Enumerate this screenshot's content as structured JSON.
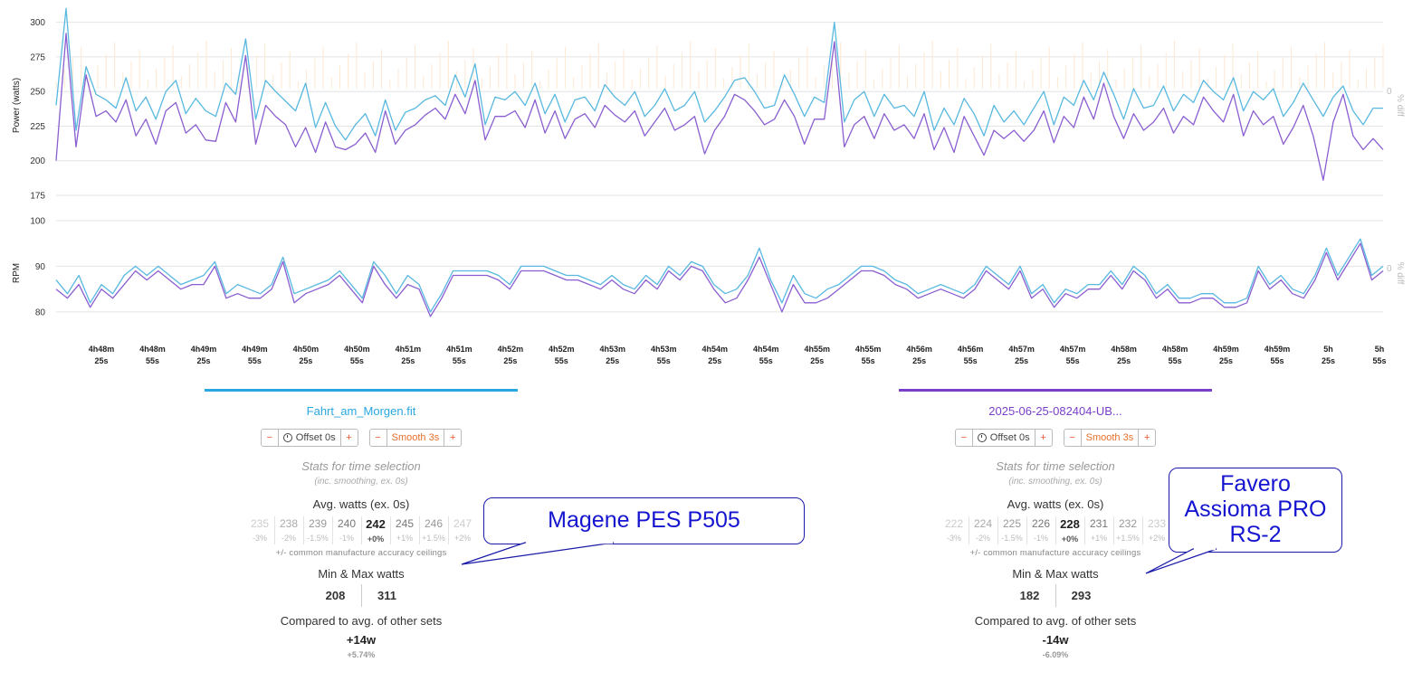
{
  "chart_data": [
    {
      "type": "line",
      "ylabel": "Power (watts)",
      "y2label": "% diff",
      "y2_tick": "0",
      "ylim": [
        175,
        305
      ],
      "yticks": [
        175,
        200,
        225,
        250,
        275,
        300
      ],
      "grid": true,
      "series": [
        {
          "file": "Fahrt_am_Morgen.fit",
          "color": "#58b8e0",
          "values": [
            240,
            310,
            222,
            268,
            248,
            244,
            238,
            260,
            236,
            246,
            230,
            250,
            258,
            234,
            245,
            236,
            232,
            256,
            248,
            288,
            230,
            258,
            250,
            243,
            236,
            256,
            224,
            242,
            225,
            215,
            226,
            234,
            218,
            244,
            222,
            235,
            238,
            244,
            247,
            240,
            262,
            246,
            270,
            226,
            246,
            244,
            250,
            240,
            256,
            234,
            248,
            228,
            244,
            246,
            236,
            255,
            246,
            240,
            250,
            232,
            240,
            252,
            236,
            240,
            250,
            228,
            236,
            246,
            258,
            260,
            250,
            238,
            240,
            262,
            248,
            232,
            246,
            242,
            300,
            228,
            244,
            250,
            232,
            248,
            238,
            240,
            232,
            250,
            222,
            238,
            226,
            245,
            234,
            218,
            240,
            228,
            236,
            226,
            238,
            250,
            226,
            246,
            240,
            258,
            244,
            264,
            248,
            230,
            252,
            238,
            240,
            254,
            236,
            248,
            242,
            258,
            250,
            244,
            260,
            236,
            250,
            244,
            252,
            232,
            242,
            256,
            244,
            232,
            246,
            254,
            236,
            226,
            238,
            238
          ]
        },
        {
          "file": "2025-06-25-082404-UB...",
          "color": "#8a5ed0",
          "values": [
            200,
            292,
            210,
            262,
            232,
            236,
            228,
            244,
            218,
            230,
            212,
            236,
            242,
            220,
            226,
            215,
            214,
            242,
            228,
            276,
            212,
            240,
            232,
            226,
            210,
            224,
            206,
            228,
            210,
            208,
            212,
            220,
            206,
            236,
            212,
            222,
            226,
            233,
            238,
            230,
            248,
            234,
            258,
            215,
            232,
            232,
            236,
            224,
            244,
            220,
            236,
            216,
            230,
            234,
            224,
            240,
            233,
            228,
            236,
            218,
            228,
            238,
            222,
            226,
            232,
            205,
            222,
            232,
            248,
            244,
            236,
            226,
            230,
            244,
            232,
            212,
            230,
            230,
            286,
            210,
            226,
            232,
            216,
            234,
            222,
            226,
            216,
            234,
            208,
            224,
            206,
            232,
            218,
            204,
            222,
            216,
            222,
            214,
            222,
            236,
            213,
            232,
            224,
            246,
            230,
            256,
            232,
            216,
            234,
            222,
            228,
            238,
            220,
            232,
            226,
            246,
            236,
            228,
            248,
            218,
            236,
            226,
            232,
            212,
            224,
            240,
            218,
            186,
            228,
            248,
            218,
            208,
            216,
            208
          ]
        }
      ]
    },
    {
      "type": "line",
      "ylabel": "RPM",
      "y2label": "% diff",
      "y2_tick": "0",
      "ylim": [
        77,
        100
      ],
      "yticks": [
        80,
        90,
        100
      ],
      "grid": true,
      "xlabels": [
        "4h48m|25s",
        "4h48m|55s",
        "4h49m|25s",
        "4h49m|55s",
        "4h50m|25s",
        "4h50m|55s",
        "4h51m|25s",
        "4h51m|55s",
        "4h52m|25s",
        "4h52m|55s",
        "4h53m|25s",
        "4h53m|55s",
        "4h54m|25s",
        "4h54m|55s",
        "4h55m|25s",
        "4h55m|55s",
        "4h56m|25s",
        "4h56m|55s",
        "4h57m|25s",
        "4h57m|55s",
        "4h58m|25s",
        "4h58m|55s",
        "4h59m|25s",
        "4h59m|55s",
        "5h|25s",
        "5h|55s"
      ],
      "series": [
        {
          "file": "Fahrt_am_Morgen.fit",
          "color": "#58b8e0",
          "values": [
            87,
            84,
            88,
            82,
            86,
            84,
            88,
            90,
            88,
            90,
            88,
            86,
            87,
            88,
            91,
            84,
            86,
            85,
            84,
            86,
            92,
            84,
            85,
            86,
            87,
            89,
            86,
            83,
            91,
            88,
            84,
            88,
            86,
            80,
            84,
            89,
            89,
            89,
            89,
            88,
            86,
            90,
            90,
            90,
            89,
            88,
            88,
            87,
            86,
            88,
            86,
            85,
            88,
            86,
            90,
            88,
            91,
            90,
            86,
            84,
            85,
            88,
            94,
            87,
            82,
            88,
            84,
            83,
            85,
            86,
            88,
            90,
            90,
            89,
            87,
            86,
            84,
            85,
            86,
            85,
            84,
            86,
            90,
            88,
            86,
            90,
            84,
            86,
            82,
            85,
            84,
            86,
            86,
            89,
            86,
            90,
            88,
            84,
            86,
            83,
            83,
            84,
            84,
            82,
            82,
            83,
            90,
            86,
            88,
            85,
            84,
            88,
            94,
            88,
            92,
            96,
            88,
            90
          ]
        },
        {
          "file": "2025-06-25-082404-UB...",
          "color": "#8a5ed0",
          "values": [
            85,
            83,
            86,
            81,
            85,
            83,
            86,
            89,
            87,
            89,
            87,
            85,
            86,
            86,
            90,
            83,
            84,
            83,
            83,
            85,
            91,
            82,
            84,
            85,
            86,
            88,
            85,
            82,
            90,
            86,
            83,
            86,
            85,
            79,
            83,
            88,
            88,
            88,
            88,
            87,
            85,
            89,
            89,
            89,
            88,
            87,
            87,
            86,
            85,
            87,
            85,
            84,
            87,
            85,
            89,
            87,
            90,
            89,
            85,
            82,
            83,
            87,
            92,
            86,
            80,
            86,
            82,
            82,
            83,
            85,
            87,
            89,
            89,
            88,
            86,
            85,
            83,
            84,
            85,
            84,
            83,
            85,
            89,
            87,
            85,
            89,
            83,
            85,
            81,
            84,
            83,
            85,
            85,
            88,
            85,
            89,
            87,
            83,
            85,
            82,
            82,
            83,
            83,
            81,
            81,
            82,
            89,
            85,
            87,
            84,
            83,
            87,
            93,
            87,
            91,
            95,
            87,
            89
          ]
        }
      ]
    }
  ],
  "panels": [
    {
      "file": "Fahrt_am_Morgen.fit",
      "color": "#29a7e0",
      "offset_label": "Offset 0s",
      "smooth_label": "Smooth 3s",
      "minus": "−",
      "plus": "+",
      "stats_title": "Stats for time selection",
      "stats_sub": "(inc. smoothing, ex. 0s)",
      "avg_title": "Avg. watts (ex. 0s)",
      "accuracy": [
        {
          "value": "235",
          "pct": "-3%"
        },
        {
          "value": "238",
          "pct": "-2%"
        },
        {
          "value": "239",
          "pct": "-1.5%"
        },
        {
          "value": "240",
          "pct": "-1%"
        },
        {
          "value": "242",
          "pct": "+0%"
        },
        {
          "value": "245",
          "pct": "+1%"
        },
        {
          "value": "246",
          "pct": "+1.5%"
        },
        {
          "value": "247",
          "pct": "+2%"
        }
      ],
      "accuracy_note": "+/- common manufacture accuracy ceilings",
      "minmax_title": "Min & Max watts",
      "min": "208",
      "max": "311",
      "compare_title": "Compared to avg. of other sets",
      "compare_w": "+14w",
      "compare_pct": "+5.74%"
    },
    {
      "file": "2025-06-25-082404-UB...",
      "color": "#7a3fc8",
      "offset_label": "Offset 0s",
      "smooth_label": "Smooth 3s",
      "minus": "−",
      "plus": "+",
      "stats_title": "Stats for time selection",
      "stats_sub": "(inc. smoothing, ex. 0s)",
      "avg_title": "Avg. watts (ex. 0s)",
      "accuracy": [
        {
          "value": "222",
          "pct": "-3%"
        },
        {
          "value": "224",
          "pct": "-2%"
        },
        {
          "value": "225",
          "pct": "-1.5%"
        },
        {
          "value": "226",
          "pct": "-1%"
        },
        {
          "value": "228",
          "pct": "+0%"
        },
        {
          "value": "231",
          "pct": "+1%"
        },
        {
          "value": "232",
          "pct": "+1.5%"
        },
        {
          "value": "233",
          "pct": "+2%"
        }
      ],
      "accuracy_note": "+/- common manufacture accuracy ceilings",
      "minmax_title": "Min & Max watts",
      "min": "182",
      "max": "293",
      "compare_title": "Compared to avg. of other sets",
      "compare_w": "-14w",
      "compare_pct": "-6.09%"
    }
  ],
  "callouts": {
    "left": {
      "line1": "Magene PES P505"
    },
    "right": {
      "line1": "Favero",
      "line2": "Assioma PRO",
      "line3": "RS-2"
    }
  }
}
